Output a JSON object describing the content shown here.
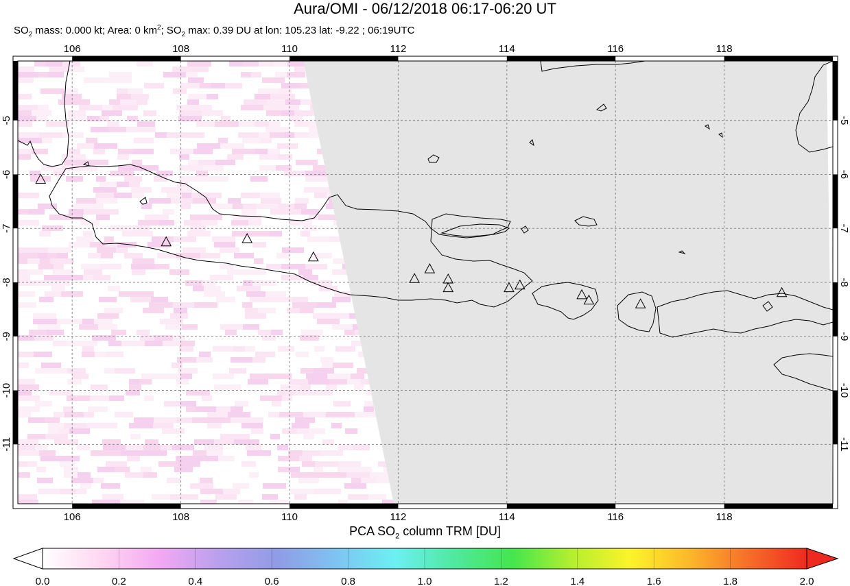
{
  "title": "Aura/OMI - 06/12/2018 06:17-06:20 UT",
  "stats": {
    "p1": "SO",
    "p1sub": "2",
    "p2": " mass: 0.000 kt; Area: 0 km",
    "p2sup": "2",
    "p3": "; SO",
    "p3sub": "2",
    "p4": " max: 0.39 DU at lon: 105.23 lat: -9.22 ; 06:19UTC"
  },
  "map": {
    "lon_range": [
      105,
      120
    ],
    "lat_range": [
      -12.1,
      -3.9
    ],
    "lon_ticks": [
      "106",
      "108",
      "110",
      "112",
      "114",
      "116",
      "118"
    ],
    "lat_ticks": [
      "-5",
      "-6",
      "-7",
      "-8",
      "-9",
      "-10",
      "-11"
    ],
    "no_data_color": "#e5e5e5",
    "volcanoes": [
      {
        "lon": 105.42,
        "lat": -6.1
      },
      {
        "lon": 107.73,
        "lat": -7.26
      },
      {
        "lon": 109.22,
        "lat": -7.2
      },
      {
        "lon": 110.44,
        "lat": -7.54
      },
      {
        "lon": 112.3,
        "lat": -7.94
      },
      {
        "lon": 112.58,
        "lat": -7.76
      },
      {
        "lon": 112.92,
        "lat": -7.95
      },
      {
        "lon": 112.92,
        "lat": -8.11
      },
      {
        "lon": 114.04,
        "lat": -8.11
      },
      {
        "lon": 114.24,
        "lat": -8.06
      },
      {
        "lon": 115.38,
        "lat": -8.24
      },
      {
        "lon": 115.51,
        "lat": -8.34
      },
      {
        "lon": 116.46,
        "lat": -8.41
      },
      {
        "lon": 119.06,
        "lat": -8.2
      }
    ]
  },
  "colorbar": {
    "title_main": "PCA SO",
    "title_sub": "2",
    "title_rest": " column TRM [DU]",
    "ticks": [
      "0.0",
      "0.2",
      "0.4",
      "0.6",
      "0.8",
      "1.0",
      "1.2",
      "1.4",
      "1.6",
      "1.8",
      "2.0"
    ],
    "colors": [
      "#ffffff",
      "#ffd6f2",
      "#f3a8f3",
      "#b9a0ee",
      "#8f9ce6",
      "#7ec4f2",
      "#6cf0f2",
      "#4fe9a0",
      "#44e64d",
      "#b4ef2e",
      "#fdf32a",
      "#fbb82a",
      "#f76e2a",
      "#ee2a20"
    ]
  }
}
